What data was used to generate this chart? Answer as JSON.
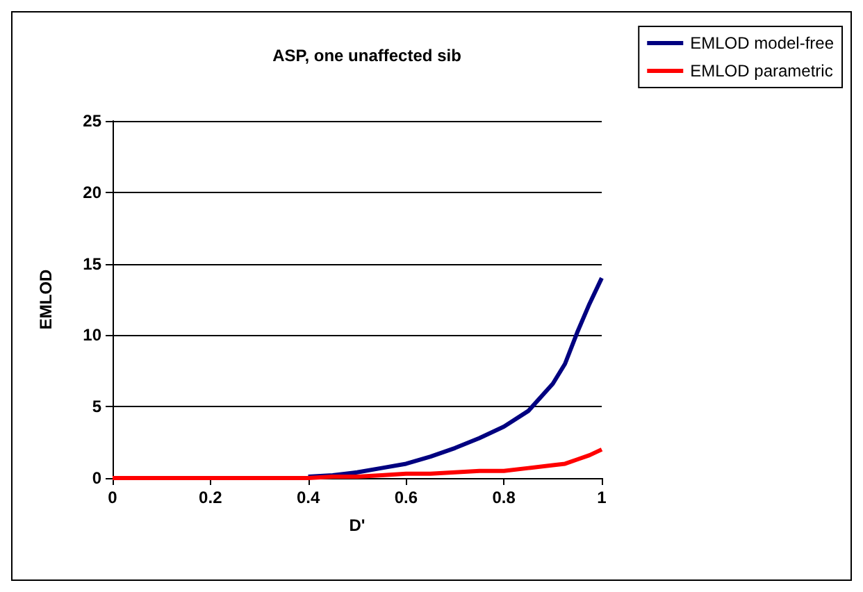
{
  "chart_data": {
    "type": "line",
    "title": "ASP, one unaffected sib",
    "xlabel": "D'",
    "ylabel": "EMLOD",
    "x": [
      0,
      0.1,
      0.2,
      0.3,
      0.4,
      0.45,
      0.5,
      0.55,
      0.6,
      0.65,
      0.7,
      0.75,
      0.8,
      0.85,
      0.9,
      0.925,
      0.95,
      0.975,
      1
    ],
    "series": [
      {
        "name": "EMLOD model-free",
        "color": "#000080",
        "values": [
          null,
          null,
          null,
          null,
          0.1,
          0.2,
          0.4,
          0.7,
          1,
          1.5,
          2.1,
          2.8,
          3.6,
          4.7,
          6.6,
          8,
          10.2,
          12.2,
          14
        ]
      },
      {
        "name": "EMLOD parametric",
        "color": "#ff0000",
        "values": [
          0,
          0,
          0,
          0,
          0,
          0.1,
          0.1,
          0.2,
          0.3,
          0.3,
          0.4,
          0.5,
          0.5,
          0.7,
          0.9,
          1,
          1.3,
          1.6,
          2
        ]
      }
    ],
    "xlim": [
      0,
      1
    ],
    "xticks": [
      0,
      0.2,
      0.4,
      0.6,
      0.8,
      1
    ],
    "ylim": [
      0,
      25
    ],
    "yticks": [
      0,
      5,
      10,
      15,
      20,
      25
    ],
    "grid": "y",
    "legend": "top right",
    "marker": "none",
    "line_style": "solid"
  }
}
